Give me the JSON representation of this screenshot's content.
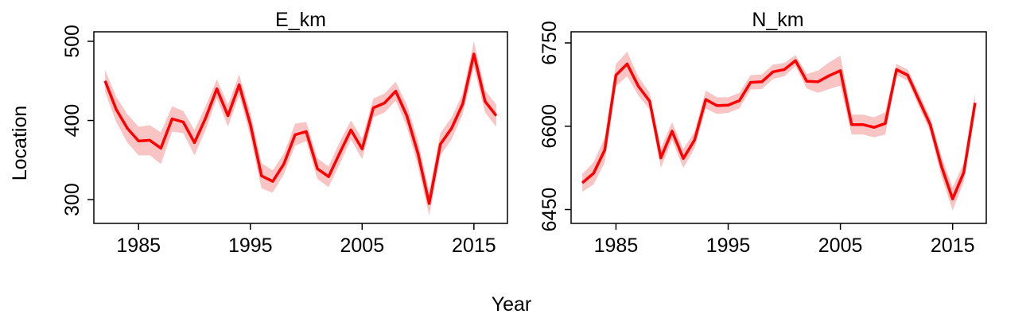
{
  "figure": {
    "ylabel": "Location",
    "xlabel": "Year"
  },
  "chart_data": [
    {
      "type": "line",
      "title": "E_km",
      "xlabel": "Year",
      "ylabel": "Location",
      "xlim": [
        1981,
        2018
      ],
      "ylim": [
        270,
        512
      ],
      "xticks": [
        1985,
        1995,
        2005,
        2015
      ],
      "yticks": [
        300,
        400,
        500
      ],
      "line_color": "#ff0000",
      "band_color": "#f8c4c4",
      "series": [
        {
          "x": [
            1982,
            1983,
            1984,
            1985,
            1986,
            1987,
            1988,
            1989,
            1990,
            1991,
            1992,
            1993,
            1994,
            1995,
            1996,
            1997,
            1998,
            1999,
            2000,
            2001,
            2002,
            2003,
            2004,
            2005,
            2006,
            2007,
            2008,
            2009,
            2010,
            2011,
            2012,
            2013,
            2014,
            2015,
            2016,
            2017
          ],
          "values": [
            450,
            414,
            390,
            374,
            375,
            365,
            402,
            398,
            372,
            403,
            440,
            406,
            445,
            395,
            330,
            323,
            345,
            382,
            386,
            339,
            329,
            359,
            388,
            364,
            416,
            422,
            437,
            406,
            358,
            295,
            370,
            390,
            421,
            484,
            424,
            406
          ],
          "lower": [
            436,
            398,
            372,
            356,
            356,
            345,
            386,
            384,
            356,
            388,
            428,
            392,
            432,
            380,
            314,
            309,
            332,
            368,
            374,
            326,
            316,
            345,
            376,
            351,
            404,
            410,
            425,
            392,
            342,
            280,
            356,
            376,
            408,
            468,
            410,
            392
          ],
          "upper": [
            464,
            430,
            408,
            392,
            394,
            385,
            418,
            412,
            388,
            418,
            452,
            420,
            458,
            410,
            346,
            337,
            358,
            396,
            398,
            352,
            342,
            373,
            400,
            377,
            428,
            434,
            449,
            420,
            374,
            310,
            384,
            404,
            434,
            500,
            438,
            420
          ]
        }
      ]
    },
    {
      "type": "line",
      "title": "N_km",
      "xlabel": "Year",
      "ylabel": "",
      "xlim": [
        1981,
        2018
      ],
      "ylim": [
        6425,
        6770
      ],
      "xticks": [
        1985,
        1995,
        2005,
        2015
      ],
      "yticks": [
        6450,
        6600,
        6750
      ],
      "line_color": "#ff0000",
      "band_color": "#f8c4c4",
      "series": [
        {
          "x": [
            1982,
            1983,
            1984,
            1985,
            1986,
            1987,
            1988,
            1989,
            1990,
            1991,
            1992,
            1993,
            1994,
            1995,
            1996,
            1997,
            1998,
            1999,
            2000,
            2001,
            2002,
            2003,
            2004,
            2005,
            2006,
            2007,
            2008,
            2009,
            2010,
            2011,
            2012,
            2013,
            2014,
            2015,
            2016,
            2017
          ],
          "values": [
            6498,
            6515,
            6557,
            6692,
            6712,
            6672,
            6645,
            6543,
            6591,
            6542,
            6575,
            6648,
            6637,
            6638,
            6646,
            6679,
            6680,
            6698,
            6702,
            6718,
            6681,
            6680,
            6691,
            6700,
            6603,
            6603,
            6598,
            6605,
            6702,
            6692,
            6647,
            6603,
            6528,
            6469,
            6517,
            6642
          ],
          "lower": [
            6482,
            6495,
            6535,
            6672,
            6690,
            6655,
            6630,
            6525,
            6575,
            6525,
            6560,
            6632,
            6622,
            6624,
            6632,
            6666,
            6667,
            6685,
            6690,
            6708,
            6668,
            6660,
            6667,
            6673,
            6585,
            6585,
            6580,
            6585,
            6692,
            6682,
            6635,
            6590,
            6510,
            6448,
            6500,
            6625
          ],
          "upper": [
            6514,
            6535,
            6579,
            6712,
            6734,
            6689,
            6660,
            6561,
            6607,
            6559,
            6590,
            6664,
            6652,
            6652,
            6660,
            6692,
            6693,
            6711,
            6714,
            6728,
            6694,
            6700,
            6715,
            6727,
            6621,
            6621,
            6616,
            6625,
            6712,
            6702,
            6659,
            6616,
            6546,
            6490,
            6534,
            6659
          ]
        }
      ]
    }
  ]
}
